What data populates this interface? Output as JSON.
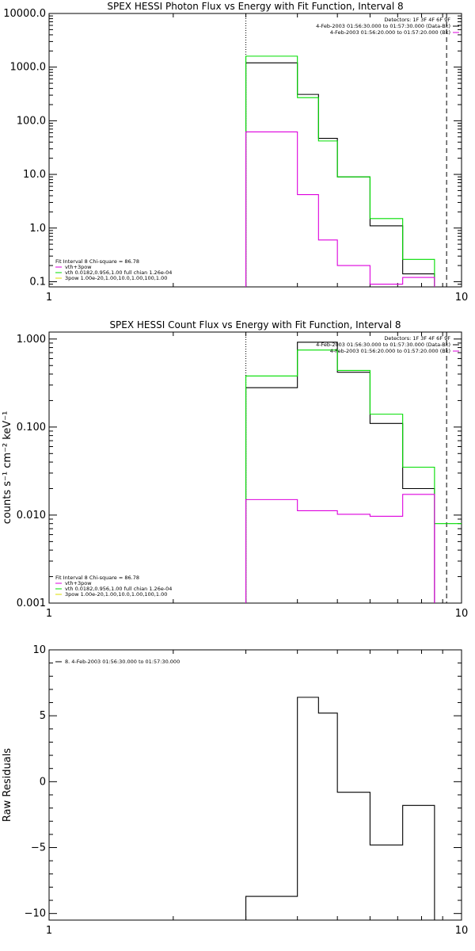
{
  "chart_data": [
    {
      "type": "line",
      "title": "SPEX HESSI Photon Flux vs Energy with Fit Function, Interval 8",
      "xscale": "log",
      "yscale": "log",
      "xlim": [
        1,
        10
      ],
      "ylim": [
        0.08,
        10000
      ],
      "xticks": [
        "1",
        "10"
      ],
      "yticks": [
        {
          "v": 0.1,
          "label": "0.1"
        },
        {
          "v": 1,
          "label": "1.0"
        },
        {
          "v": 10,
          "label": "10.0"
        },
        {
          "v": 100,
          "label": "100.0"
        },
        {
          "v": 1000,
          "label": "1000.0"
        },
        {
          "v": 10000,
          "label": "10000.0"
        }
      ],
      "vlines": [
        {
          "x": 3.0,
          "style": "dotted"
        },
        {
          "x": 9.2,
          "style": "dashed"
        }
      ],
      "series": [
        {
          "color": "#000000",
          "edges": [
            3.0,
            3.5,
            4.0,
            4.5,
            5.0,
            5.5,
            6.0,
            6.6,
            7.2,
            7.9,
            8.6
          ],
          "values": [
            1200,
            1200,
            310,
            47,
            9,
            9,
            1.1,
            1.1,
            0.14,
            0.14
          ]
        },
        {
          "color": "#00dd00",
          "edges": [
            3.0,
            3.5,
            4.0,
            4.5,
            5.0,
            5.5,
            6.0,
            6.6,
            7.2,
            7.9,
            8.6
          ],
          "values": [
            1600,
            1600,
            270,
            42,
            9,
            9,
            1.5,
            1.5,
            0.26,
            0.26
          ]
        },
        {
          "color": "#dd00dd",
          "edges": [
            3.0,
            3.5,
            4.0,
            4.5,
            5.0,
            5.5,
            6.0,
            6.6,
            7.2,
            7.9,
            8.6
          ],
          "values": [
            62,
            62,
            4.2,
            0.6,
            0.2,
            0.2,
            0.09,
            0.09,
            0.12,
            0.12
          ]
        }
      ],
      "info": [
        {
          "text": "Detectors: 1F 3F 4F 6F 9F",
          "color": "#000000",
          "line": false
        },
        {
          "text": "4-Feb-2003 01:56:30.000 to 01:57:30.000 (Data-Bk)",
          "color": "#000000",
          "line": true
        },
        {
          "text": "4-Feb-2003 01:56:20.000 to 01:57:20.000 (Bk)",
          "color": "#dd00dd",
          "line": true
        }
      ],
      "legend": [
        {
          "text": "Fit Interval 8    Chi-square = 86.78",
          "color": "#000000",
          "line": false
        },
        {
          "text": "vth+3pow",
          "color": "#dd00dd",
          "line": true
        },
        {
          "text": "vth 0.0182,0.956,1.00  full chian 1.26e-04",
          "color": "#00dd00",
          "line": true
        },
        {
          "text": "3pow 1.00e-20,1.00,10.0,1.00,100,1.00",
          "color": "#dddd00",
          "line": true
        }
      ]
    },
    {
      "type": "line",
      "title": "SPEX HESSI Count Flux vs Energy with Fit Function, Interval 8",
      "ylabel": "counts s⁻¹ cm⁻² keV⁻¹",
      "xscale": "log",
      "yscale": "log",
      "xlim": [
        1,
        10
      ],
      "ylim": [
        0.001,
        1.2
      ],
      "xticks": [
        "1",
        "10"
      ],
      "yticks": [
        {
          "v": 0.001,
          "label": "0.001"
        },
        {
          "v": 0.01,
          "label": "0.010"
        },
        {
          "v": 0.1,
          "label": "0.100"
        },
        {
          "v": 1,
          "label": "1.000"
        }
      ],
      "vlines": [
        {
          "x": 3.0,
          "style": "dotted"
        },
        {
          "x": 9.2,
          "style": "dashed"
        }
      ],
      "series": [
        {
          "color": "#000000",
          "edges": [
            3.0,
            3.5,
            4.0,
            4.5,
            5.0,
            5.5,
            6.0,
            6.6,
            7.2,
            7.9,
            8.6
          ],
          "values": [
            0.28,
            0.28,
            0.92,
            0.92,
            0.42,
            0.42,
            0.11,
            0.11,
            0.02,
            0.02
          ]
        },
        {
          "color": "#00dd00",
          "edges": [
            3.0,
            3.5,
            4.0,
            4.5,
            5.0,
            5.5,
            6.0,
            6.6,
            7.2,
            7.9,
            8.6,
            9.2,
            10
          ],
          "values": [
            0.38,
            0.38,
            0.75,
            0.75,
            0.44,
            0.44,
            0.14,
            0.14,
            0.035,
            0.035,
            0.008,
            0.008
          ]
        },
        {
          "color": "#dd00dd",
          "edges": [
            3.0,
            3.5,
            4.0,
            4.5,
            5.0,
            5.5,
            6.0,
            6.6,
            7.2,
            7.9,
            8.6
          ],
          "values": [
            0.015,
            0.015,
            0.0112,
            0.0112,
            0.0102,
            0.0102,
            0.0097,
            0.0097,
            0.0172,
            0.0172
          ]
        }
      ],
      "info": [
        {
          "text": "Detectors: 1F 3F 4F 6F 9F",
          "color": "#000000",
          "line": false
        },
        {
          "text": "4-Feb-2003 01:56:30.000 to 01:57:30.000 (Data-Bk)",
          "color": "#000000",
          "line": true
        },
        {
          "text": "4-Feb-2003 01:56:20.000 to 01:57:20.000 (Bk)",
          "color": "#dd00dd",
          "line": true
        }
      ],
      "legend": [
        {
          "text": "Fit Interval 8    Chi-square = 86.78",
          "color": "#000000",
          "line": false
        },
        {
          "text": "vth+3pow",
          "color": "#dd00dd",
          "line": true
        },
        {
          "text": "vth 0.0182,0.956,1.00  full chian 1.26e-04",
          "color": "#00dd00",
          "line": true
        },
        {
          "text": "3pow 1.00e-20,1.00,10.0,1.00,100,1.00",
          "color": "#dddd00",
          "line": true
        }
      ]
    },
    {
      "type": "line",
      "title": "",
      "ylabel": "Raw Residuals",
      "xscale": "log",
      "yscale": "linear",
      "xlim": [
        1,
        10
      ],
      "ylim": [
        -10.5,
        10
      ],
      "xticks": [
        "1",
        "10"
      ],
      "yticks": [
        {
          "v": -10,
          "label": "−10"
        },
        {
          "v": -5,
          "label": "−5"
        },
        {
          "v": 0,
          "label": "0"
        },
        {
          "v": 5,
          "label": "5"
        },
        {
          "v": 10,
          "label": "10"
        }
      ],
      "vlines": [],
      "series": [
        {
          "color": "#000000",
          "edges": [
            3.0,
            3.5,
            4.0,
            4.5,
            5.0,
            5.5,
            6.0,
            6.6,
            7.2,
            7.9,
            8.6
          ],
          "values": [
            -8.7,
            -8.7,
            6.4,
            5.2,
            -0.8,
            -0.8,
            -4.8,
            -4.8,
            -1.8,
            -1.8
          ]
        }
      ],
      "info": [],
      "legend": [
        {
          "text": "8. 4-Feb-2003 01:56:30.000 to 01:57:30.000",
          "color": "#000000",
          "line": true
        }
      ]
    }
  ]
}
